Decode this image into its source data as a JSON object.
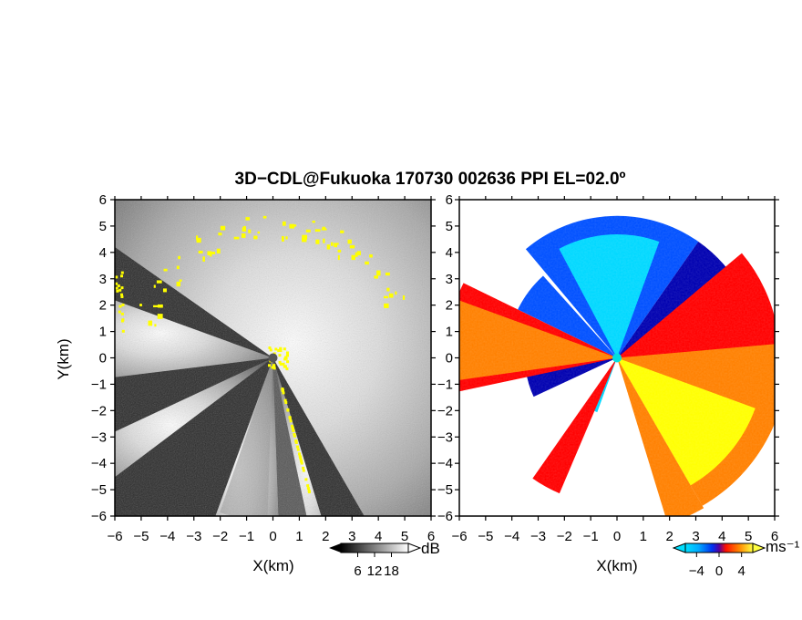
{
  "title": "3D−CDL@Fukuoka 170730 002636 PPI EL=02.0º",
  "chart_data": [
    {
      "type": "heatmap",
      "panel": "left",
      "quantity": "backscatter intensity",
      "xlabel": "X(km)",
      "ylabel": "Y(km)",
      "xlim": [
        -6,
        6
      ],
      "ylim": [
        -6,
        6
      ],
      "x_ticks": [
        "−6",
        "−5",
        "−4",
        "−3",
        "−2",
        "−1",
        "0",
        "1",
        "2",
        "3",
        "4",
        "5",
        "6"
      ],
      "y_ticks": [
        "6",
        "5",
        "4",
        "3",
        "2",
        "1",
        "0",
        "−1",
        "−2",
        "−3",
        "−4",
        "−5",
        "−6"
      ],
      "colormap": "grayscale",
      "colorbar": {
        "unit": "dB",
        "ticks": [
          "6",
          "12",
          "18"
        ],
        "range": [
          0,
          24
        ]
      },
      "highlight_color": "#ffff00",
      "blocked_sectors_deg": [
        [
          150,
          163
        ],
        [
          168,
          178
        ],
        [
          200,
          233
        ],
        [
          245,
          263
        ],
        [
          290,
          305
        ]
      ]
    },
    {
      "type": "heatmap",
      "panel": "right",
      "quantity": "radial velocity",
      "xlabel": "X(km)",
      "xlim": [
        -6,
        6
      ],
      "ylim": [
        -6,
        6
      ],
      "x_ticks": [
        "−6",
        "−5",
        "−4",
        "−3",
        "−2",
        "−1",
        "0",
        "1",
        "2",
        "3",
        "4",
        "5",
        "6"
      ],
      "y_ticks": [
        "6",
        "5",
        "4",
        "3",
        "2",
        "1",
        "0",
        "−1",
        "−2",
        "−3",
        "−4",
        "−5",
        "−6"
      ],
      "colormap": "cyan-blue-red-orange-yellow",
      "colorbar": {
        "unit": "ms⁻¹",
        "ticks": [
          "−4",
          "0",
          "4"
        ],
        "range": [
          -6,
          6
        ]
      },
      "colors": [
        "#00d8ff",
        "#0050ff",
        "#0000b0",
        "#ff0000",
        "#ff8000",
        "#ffff00"
      ]
    }
  ]
}
